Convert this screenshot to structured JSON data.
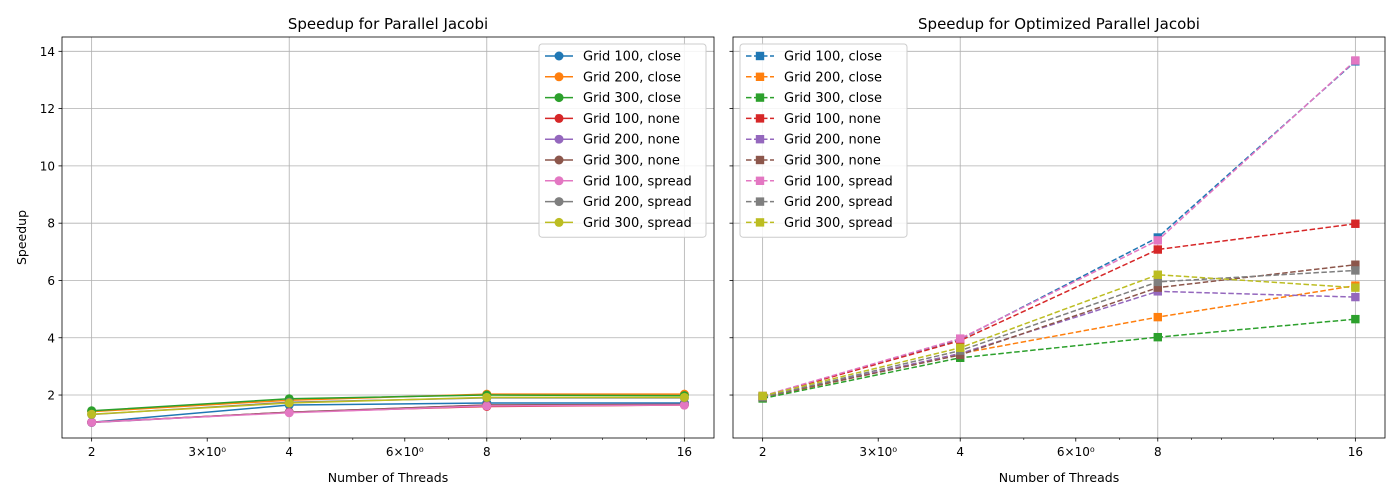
{
  "chart_data": [
    {
      "type": "line",
      "title": "Speedup for Parallel Jacobi",
      "xlabel": "Number of Threads",
      "ylabel": "Speedup",
      "xscale": "log",
      "x": [
        2,
        4,
        8,
        16
      ],
      "xticks": [
        {
          "value": 2,
          "label": "2"
        },
        {
          "value": 3,
          "label": "3×10⁰"
        },
        {
          "value": 4,
          "label": "4"
        },
        {
          "value": 6,
          "label": "6×10⁰"
        },
        {
          "value": 8,
          "label": "8"
        },
        {
          "value": 16,
          "label": "16"
        }
      ],
      "ylim": [
        0.5,
        14.5
      ],
      "yticks": [
        {
          "value": 2,
          "label": "2"
        },
        {
          "value": 4,
          "label": "4"
        },
        {
          "value": 6,
          "label": "6"
        },
        {
          "value": 8,
          "label": "8"
        },
        {
          "value": 10,
          "label": "10"
        },
        {
          "value": 12,
          "label": "12"
        },
        {
          "value": 14,
          "label": "14"
        }
      ],
      "grid": true,
      "legend": "top-right",
      "marker": "circle",
      "line_style": "solid",
      "series": [
        {
          "name": "Grid 100, close",
          "color": "#1f77b4",
          "values": [
            1.05,
            1.65,
            1.72,
            1.72
          ]
        },
        {
          "name": "Grid 200, close",
          "color": "#ff7f0e",
          "values": [
            1.42,
            1.82,
            2.03,
            2.03
          ]
        },
        {
          "name": "Grid 300, close",
          "color": "#2ca02c",
          "values": [
            1.45,
            1.87,
            2.0,
            1.98
          ]
        },
        {
          "name": "Grid 100, none",
          "color": "#d62728",
          "values": [
            1.05,
            1.4,
            1.6,
            1.65
          ]
        },
        {
          "name": "Grid 200, none",
          "color": "#9467bd",
          "values": [
            1.04,
            1.4,
            1.65,
            1.68
          ]
        },
        {
          "name": "Grid 300, none",
          "color": "#8c564b",
          "values": [
            1.05,
            1.4,
            1.65,
            1.67
          ]
        },
        {
          "name": "Grid 100, spread",
          "color": "#e377c2",
          "values": [
            1.05,
            1.38,
            1.62,
            1.65
          ]
        },
        {
          "name": "Grid 200, spread",
          "color": "#7f7f7f",
          "values": [
            1.32,
            1.75,
            1.9,
            1.9
          ]
        },
        {
          "name": "Grid 300, spread",
          "color": "#bcbd22",
          "values": [
            1.33,
            1.72,
            1.92,
            1.92
          ]
        }
      ]
    },
    {
      "type": "line",
      "title": "Speedup for Optimized Parallel Jacobi",
      "xlabel": "Number of Threads",
      "ylabel": "",
      "xscale": "log",
      "x": [
        2,
        4,
        8,
        16
      ],
      "xticks": [
        {
          "value": 2,
          "label": "2"
        },
        {
          "value": 3,
          "label": "3×10⁰"
        },
        {
          "value": 4,
          "label": "4"
        },
        {
          "value": 6,
          "label": "6×10⁰"
        },
        {
          "value": 8,
          "label": "8"
        },
        {
          "value": 16,
          "label": "16"
        }
      ],
      "ylim": [
        0.5,
        14.5
      ],
      "shared_y": true,
      "grid": true,
      "legend": "top-left",
      "marker": "square",
      "line_style": "dashed",
      "series": [
        {
          "name": "Grid 100, close",
          "color": "#1f77b4",
          "values": [
            1.95,
            3.95,
            7.5,
            13.65
          ]
        },
        {
          "name": "Grid 200, close",
          "color": "#ff7f0e",
          "values": [
            1.9,
            3.45,
            4.72,
            5.82
          ]
        },
        {
          "name": "Grid 300, close",
          "color": "#2ca02c",
          "values": [
            1.88,
            3.3,
            4.02,
            4.65
          ]
        },
        {
          "name": "Grid 100, none",
          "color": "#d62728",
          "values": [
            1.95,
            3.9,
            7.08,
            7.98
          ]
        },
        {
          "name": "Grid 200, none",
          "color": "#9467bd",
          "values": [
            1.93,
            3.45,
            5.62,
            5.42
          ]
        },
        {
          "name": "Grid 300, none",
          "color": "#8c564b",
          "values": [
            1.93,
            3.4,
            5.75,
            6.55
          ]
        },
        {
          "name": "Grid 100, spread",
          "color": "#e377c2",
          "values": [
            1.97,
            3.97,
            7.4,
            13.68
          ]
        },
        {
          "name": "Grid 200, spread",
          "color": "#7f7f7f",
          "values": [
            1.93,
            3.55,
            5.95,
            6.35
          ]
        },
        {
          "name": "Grid 300, spread",
          "color": "#bcbd22",
          "values": [
            1.97,
            3.65,
            6.2,
            5.75
          ]
        }
      ]
    }
  ]
}
